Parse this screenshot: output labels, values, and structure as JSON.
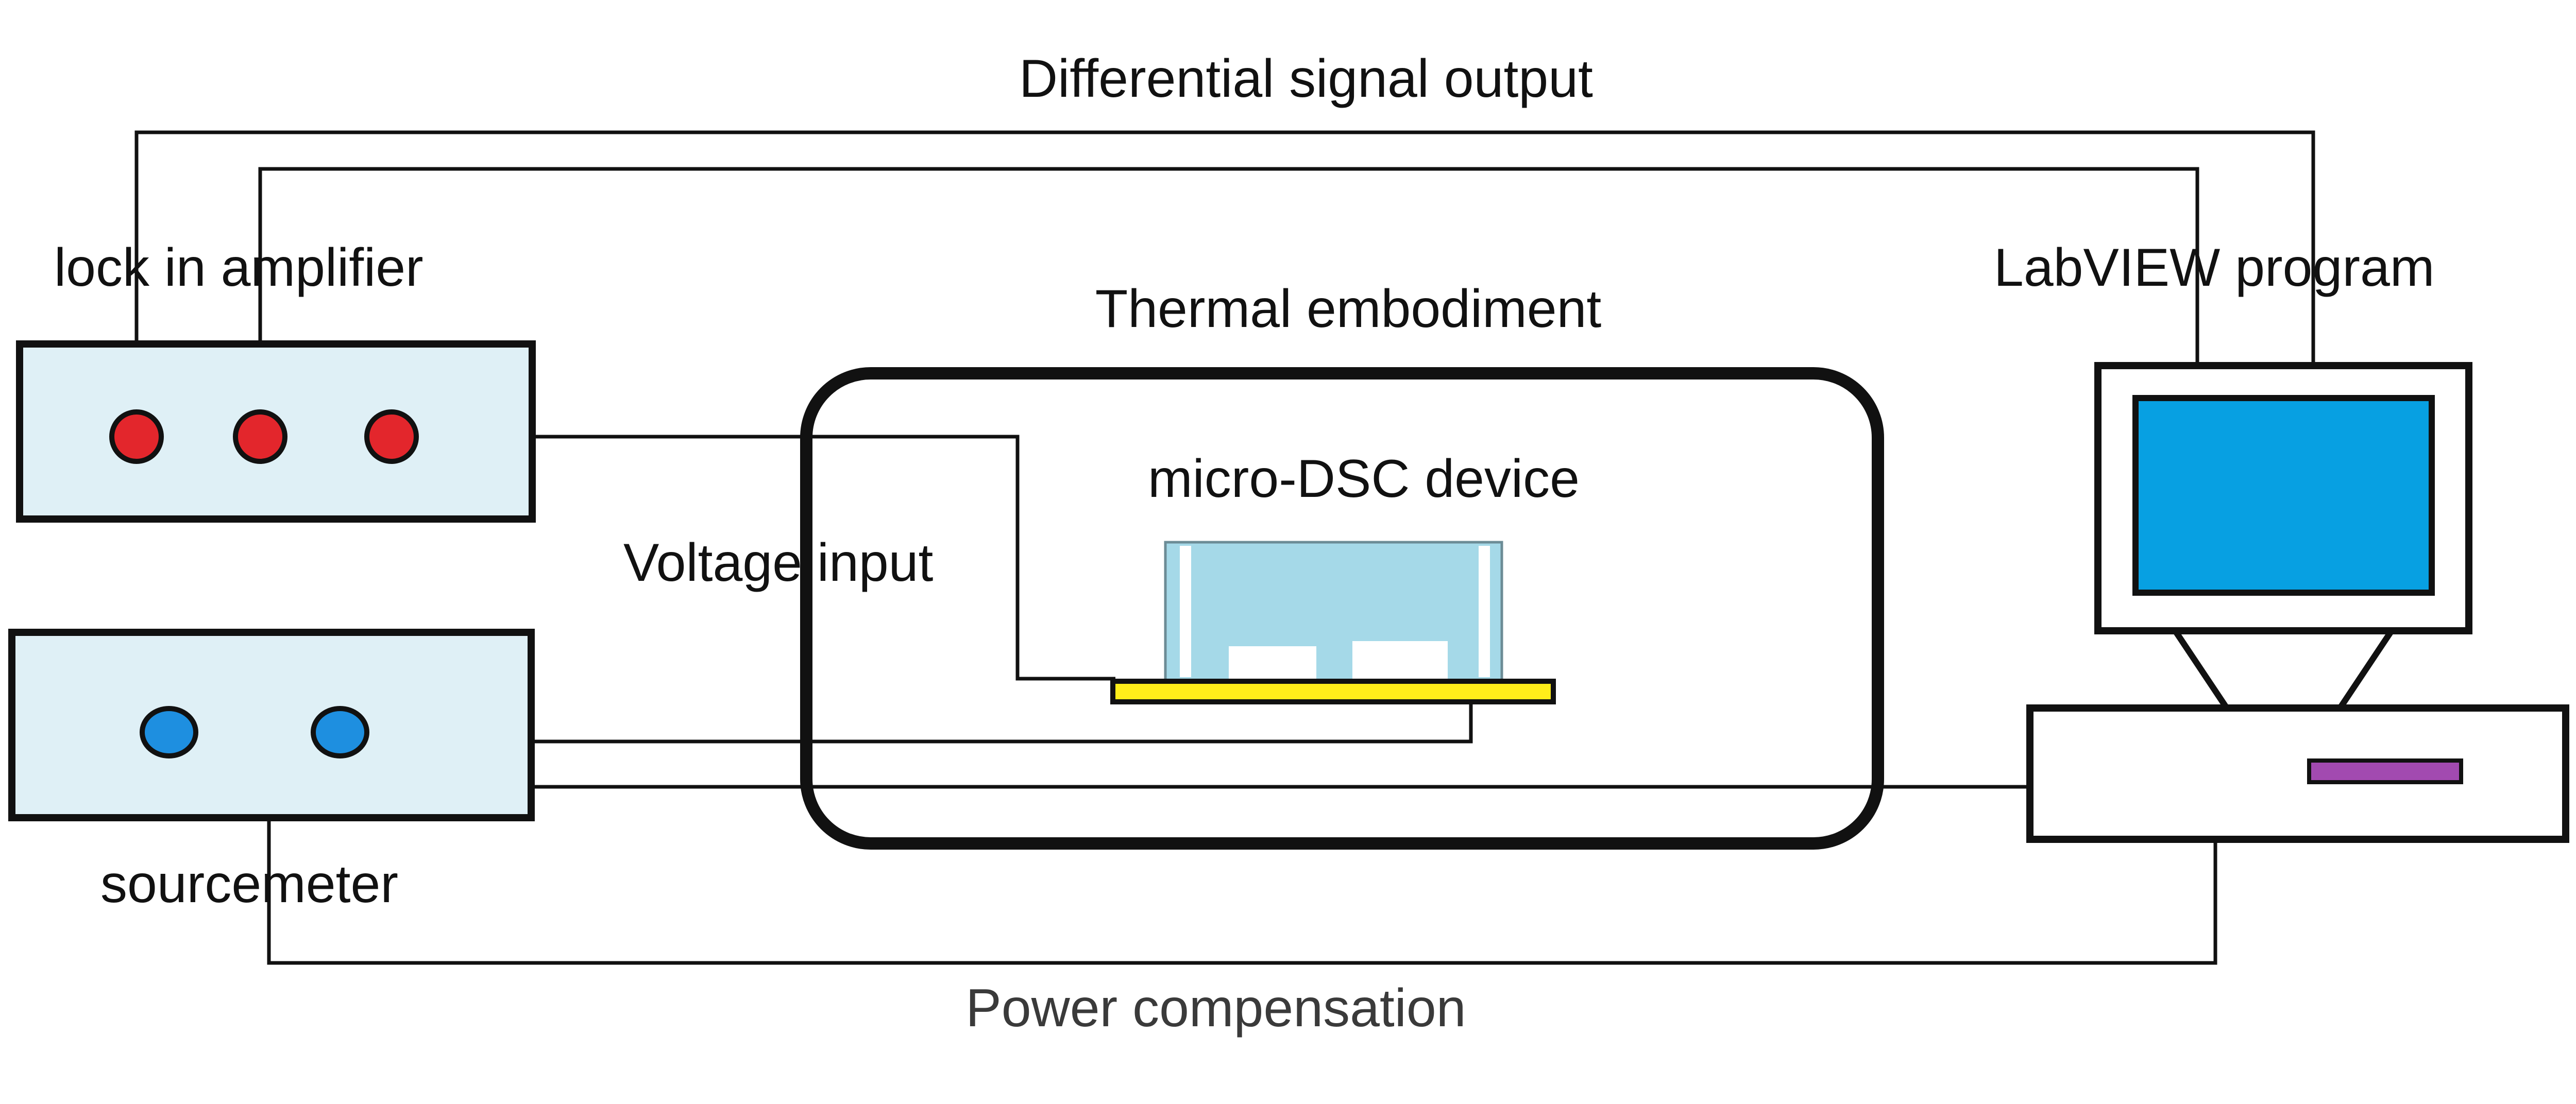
{
  "labels": {
    "differential_signal_output": "Differential signal output",
    "lock_in_amplifier": "lock in amplifier",
    "labview_program": "LabVIEW program",
    "thermal_embodiment": "Thermal embodiment",
    "micro_dsc_device": "micro-DSC device",
    "voltage_input": "Voltage input",
    "sourcemeter": "sourcemeter",
    "power_compensation": "Power compensation"
  },
  "colors": {
    "instrument_panel": "#dff0f6",
    "red_terminal": "#e3262c",
    "blue_terminal": "#1e8fe0",
    "monitor_screen": "#07a0e2",
    "device_body": "#a5d9e8",
    "device_substrate": "#ffee1a",
    "drive_slot": "#a24ab0",
    "wire": "#111111"
  },
  "icons": {
    "lock_in_amplifier": "instrument-box-icon",
    "sourcemeter": "instrument-box-icon",
    "computer": "desktop-computer-icon",
    "micro_dsc_device": "chip-on-substrate-icon"
  }
}
